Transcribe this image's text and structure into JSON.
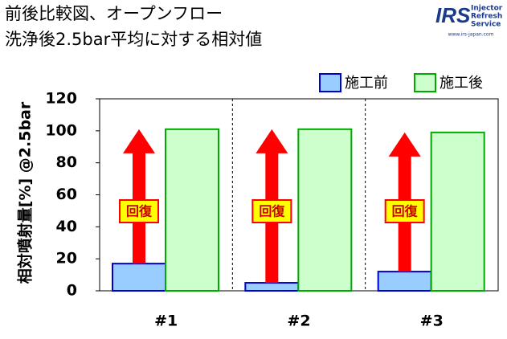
{
  "title": [
    "前後比較図、オープンフロー",
    "洗浄後2.5bar平均に対する相対値"
  ],
  "logo": {
    "mark": "IRS",
    "lines": [
      "Injector",
      "Refresh",
      "Service"
    ],
    "url": "www.irs-japan.com"
  },
  "chart_data": {
    "type": "bar",
    "y_label": "相対噴射量[%] @2.5bar",
    "categories": [
      "#1",
      "#2",
      "#3"
    ],
    "series": [
      {
        "name": "施工前",
        "color": "#99ccff",
        "border": "#0000cc",
        "values": [
          17,
          5,
          12
        ]
      },
      {
        "name": "施工後",
        "color": "#ccffcc",
        "border": "#00aa00",
        "values": [
          101,
          101,
          99
        ]
      }
    ],
    "annotations": [
      "回復",
      "回復",
      "回復"
    ],
    "ylim": [
      0,
      120
    ],
    "yticks": [
      0,
      20,
      40,
      60,
      80,
      100,
      120
    ],
    "legend": "top-right"
  }
}
